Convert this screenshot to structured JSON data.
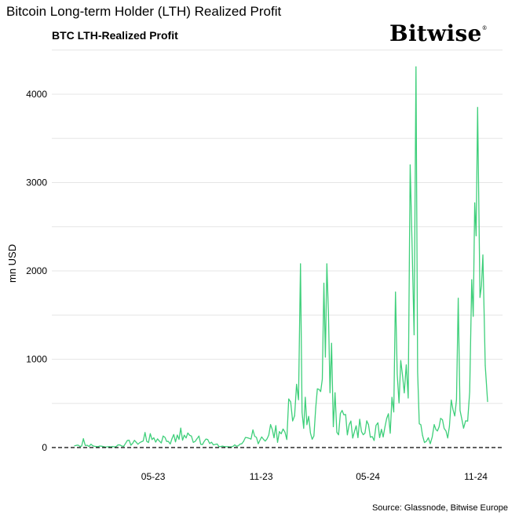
{
  "page": {
    "title": "Bitcoin Long-term Holder (LTH) Realized Profit",
    "source": "Source: Glassnode, Bitwise Europe"
  },
  "logo": {
    "text": "Bitwise",
    "mark": "®"
  },
  "chart_data": {
    "type": "line",
    "title": "BTC LTH-Realized Profit",
    "xlabel": "",
    "ylabel": "mn USD",
    "ylim": [
      0,
      4500
    ],
    "yticks": [
      0,
      1000,
      2000,
      3000,
      4000
    ],
    "xticks": [
      "05-23",
      "11-23",
      "05-24",
      "11-24"
    ],
    "grid": true,
    "zero_line": "dashed",
    "colors": {
      "series": "#3ecf7a",
      "grid": "#e6e6e6",
      "zero_line": "#000000"
    },
    "series": [
      {
        "x": [
          "2023-01-01",
          "2023-01-16",
          "2023-02-01",
          "2023-02-16",
          "2023-03-01",
          "2023-03-16",
          "2023-04-01",
          "2023-04-16",
          "2023-05-01",
          "2023-05-16",
          "2023-06-01",
          "2023-06-16",
          "2023-07-01",
          "2023-07-16",
          "2023-08-01",
          "2023-08-16",
          "2023-09-01",
          "2023-09-16",
          "2023-10-01",
          "2023-10-16",
          "2023-11-01",
          "2023-11-16",
          "2023-12-01",
          "2023-12-16",
          "2024-01-01",
          "2024-01-11",
          "2024-01-21",
          "2024-02-01",
          "2024-02-16",
          "2024-03-01",
          "2024-03-06",
          "2024-03-14",
          "2024-03-20",
          "2024-04-01",
          "2024-04-16",
          "2024-05-01",
          "2024-05-16",
          "2024-06-01",
          "2024-06-16",
          "2024-07-01",
          "2024-07-16",
          "2024-07-26",
          "2024-08-05",
          "2024-08-16",
          "2024-08-26",
          "2024-09-05",
          "2024-09-16",
          "2024-10-01",
          "2024-10-16",
          "2024-10-25",
          "2024-11-01",
          "2024-11-08",
          "2024-11-13",
          "2024-11-18",
          "2024-11-22",
          "2024-11-27",
          "2024-12-01",
          "2024-12-05"
        ],
        "values": [
          20,
          100,
          20,
          15,
          10,
          30,
          80,
          60,
          170,
          110,
          130,
          100,
          220,
          140,
          130,
          90,
          40,
          10,
          30,
          70,
          200,
          120,
          260,
          180,
          550,
          360,
          2080,
          260,
          450,
          1860,
          2080,
          1180,
          620,
          420,
          300,
          320,
          260,
          280,
          330,
          1760,
          620,
          3200,
          4310,
          140,
          110,
          260,
          330,
          240,
          1690,
          220,
          300,
          1900,
          2770,
          3850,
          1700,
          2180,
          930,
          520
        ]
      }
    ]
  }
}
